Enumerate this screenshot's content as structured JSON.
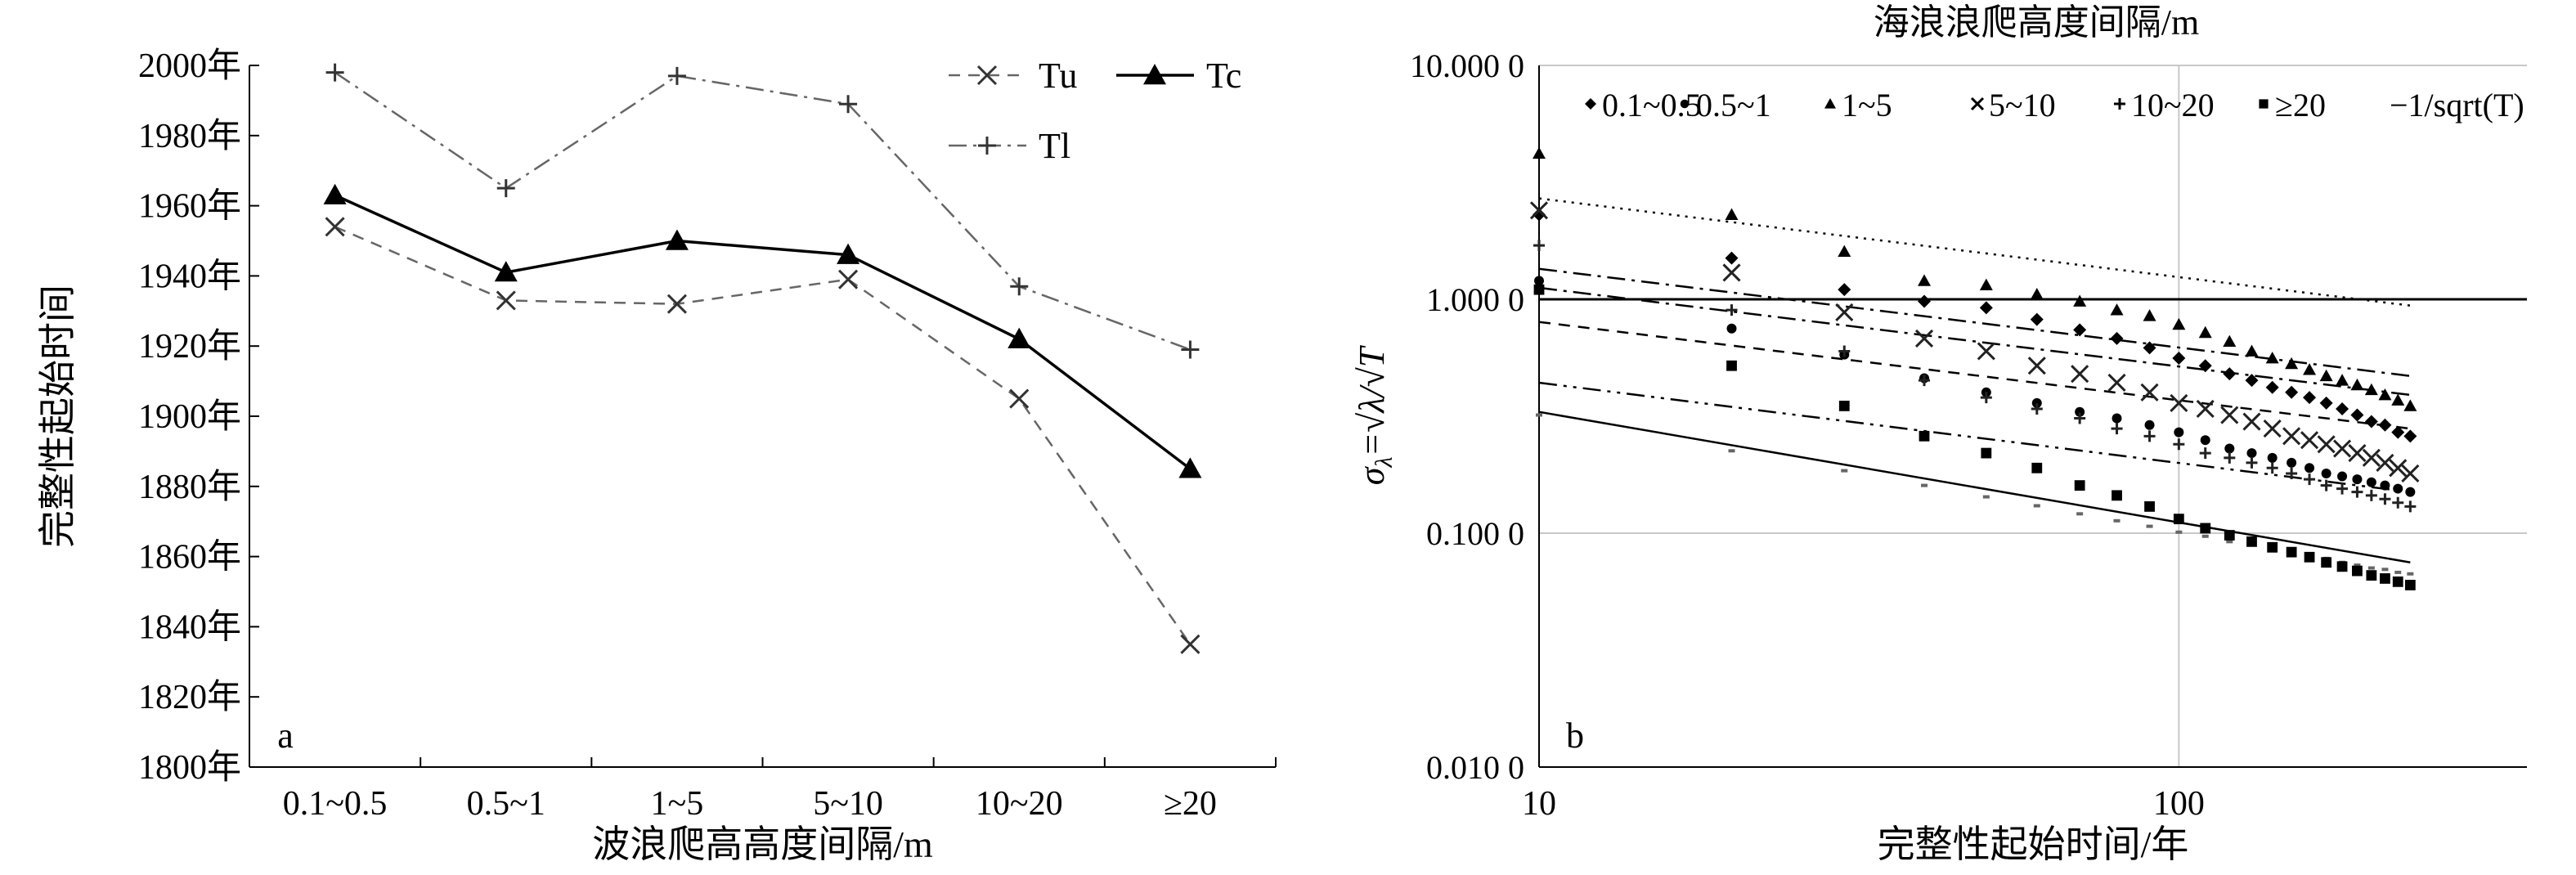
{
  "chart_data": [
    {
      "id": "a",
      "type": "line",
      "panel_label": "a",
      "xlabel": "波浪爬高高度间隔/m",
      "ylabel": "完整性起始时间",
      "categories": [
        "0.1~0.5",
        "0.5~1",
        "1~5",
        "5~10",
        "10~20",
        "≥20"
      ],
      "ylim": [
        1800,
        2000
      ],
      "yticks": [
        1800,
        1820,
        1840,
        1860,
        1880,
        1900,
        1920,
        1940,
        1960,
        1980,
        2000
      ],
      "ytick_suffix": "年",
      "grid": false,
      "legend_placement": "top-right",
      "series": [
        {
          "name": "Tu",
          "marker": "x",
          "dash": "dashed",
          "color": "#666666",
          "values": [
            1954,
            1933,
            1932,
            1939,
            1905,
            1835
          ]
        },
        {
          "name": "Tc",
          "marker": "triangle",
          "dash": "solid",
          "color": "#000000",
          "values": [
            1963,
            1941,
            1950,
            1946,
            1922,
            1885
          ]
        },
        {
          "name": "Tl",
          "marker": "plus",
          "dash": "dashdot",
          "color": "#666666",
          "values": [
            1998,
            1965,
            1997,
            1989,
            1937,
            1919
          ]
        }
      ]
    },
    {
      "id": "b",
      "type": "scatter",
      "panel_label": "b",
      "title": "海浪浪爬高度间隔/m",
      "xlabel": "完整性起始时间/年",
      "ylabel_parts": {
        "sigma": "σ",
        "sub": "λ",
        "eq": "=√λ/√T"
      },
      "xscale": "log",
      "yscale": "log",
      "xlim": [
        10,
        350
      ],
      "ylim": [
        0.01,
        10
      ],
      "xticks": [
        {
          "v": 10,
          "label": "10"
        },
        {
          "v": 100,
          "label": "100"
        }
      ],
      "yticks": [
        {
          "v": 10,
          "label": "10.000 0"
        },
        {
          "v": 1,
          "label": "1.000 0"
        },
        {
          "v": 0.1,
          "label": "0.100 0"
        },
        {
          "v": 0.01,
          "label": "0.010 0"
        }
      ],
      "grid": true,
      "reference_line_y": 1,
      "legend_placement": "top",
      "legend_ref_label": "−1/sqrt(T)",
      "x_points": [
        10,
        20,
        30,
        40,
        50,
        60,
        70,
        80,
        90,
        100,
        110,
        120,
        130,
        140,
        150,
        160,
        170,
        180,
        190,
        200,
        210,
        220,
        230
      ],
      "series": [
        {
          "name": "0.1~0.5",
          "marker": "diamond",
          "trend_dash": "dashdot",
          "values": [
            2.3,
            1.5,
            1.1,
            0.98,
            0.92,
            0.82,
            0.74,
            0.68,
            0.62,
            0.56,
            0.52,
            0.48,
            0.45,
            0.42,
            0.4,
            0.38,
            0.36,
            0.34,
            0.32,
            0.3,
            0.29,
            0.27,
            0.26
          ],
          "trend": [
            1.35,
            0.47
          ]
        },
        {
          "name": "0.5~1",
          "marker": "circle",
          "trend_dash": "dashed",
          "values": [
            1.2,
            0.75,
            0.58,
            0.46,
            0.4,
            0.36,
            0.33,
            0.31,
            0.29,
            0.27,
            0.25,
            0.23,
            0.22,
            0.21,
            0.2,
            0.19,
            0.18,
            0.175,
            0.17,
            0.165,
            0.16,
            0.155,
            0.15
          ],
          "trend": [
            0.8,
            0.28
          ]
        },
        {
          "name": "1~5",
          "marker": "triangle",
          "trend_dash": "dotted",
          "values": [
            4.2,
            2.3,
            1.6,
            1.2,
            1.15,
            1.05,
            0.98,
            0.9,
            0.85,
            0.78,
            0.72,
            0.66,
            0.6,
            0.56,
            0.53,
            0.5,
            0.47,
            0.45,
            0.43,
            0.41,
            0.39,
            0.37,
            0.35
          ],
          "trend": [
            2.7,
            0.94
          ]
        },
        {
          "name": "5~10",
          "marker": "x",
          "trend_dash": "dashdot",
          "values": [
            2.4,
            1.3,
            0.88,
            0.68,
            0.6,
            0.52,
            0.48,
            0.44,
            0.4,
            0.36,
            0.34,
            0.32,
            0.3,
            0.28,
            0.26,
            0.25,
            0.24,
            0.23,
            0.22,
            0.21,
            0.2,
            0.19,
            0.18
          ],
          "trend": [
            1.12,
            0.39
          ]
        },
        {
          "name": "10~20",
          "marker": "plus",
          "trend_dash": "dashdotdot",
          "values": [
            1.7,
            0.9,
            0.6,
            0.45,
            0.38,
            0.34,
            0.31,
            0.28,
            0.26,
            0.24,
            0.22,
            0.21,
            0.2,
            0.19,
            0.18,
            0.17,
            0.16,
            0.155,
            0.15,
            0.145,
            0.14,
            0.135,
            0.13
          ],
          "trend": [
            0.44,
            0.15
          ]
        },
        {
          "name": "≥20",
          "marker": "square",
          "trend_dash": "solid",
          "values": [
            1.1,
            0.52,
            0.35,
            0.26,
            0.22,
            0.19,
            0.16,
            0.145,
            0.13,
            0.115,
            0.105,
            0.098,
            0.092,
            0.087,
            0.083,
            0.079,
            0.075,
            0.072,
            0.069,
            0.066,
            0.064,
            0.062,
            0.06
          ],
          "trend": [
            0.33,
            0.075
          ]
        }
      ],
      "bottom_points": [
        0.32,
        0.225,
        0.185,
        0.16,
        0.143,
        0.131,
        0.121,
        0.113,
        0.107,
        0.101,
        0.097,
        0.092,
        0.089,
        0.086,
        0.083,
        0.08,
        0.078,
        0.075,
        0.073,
        0.071,
        0.07,
        0.068,
        0.067
      ]
    }
  ]
}
